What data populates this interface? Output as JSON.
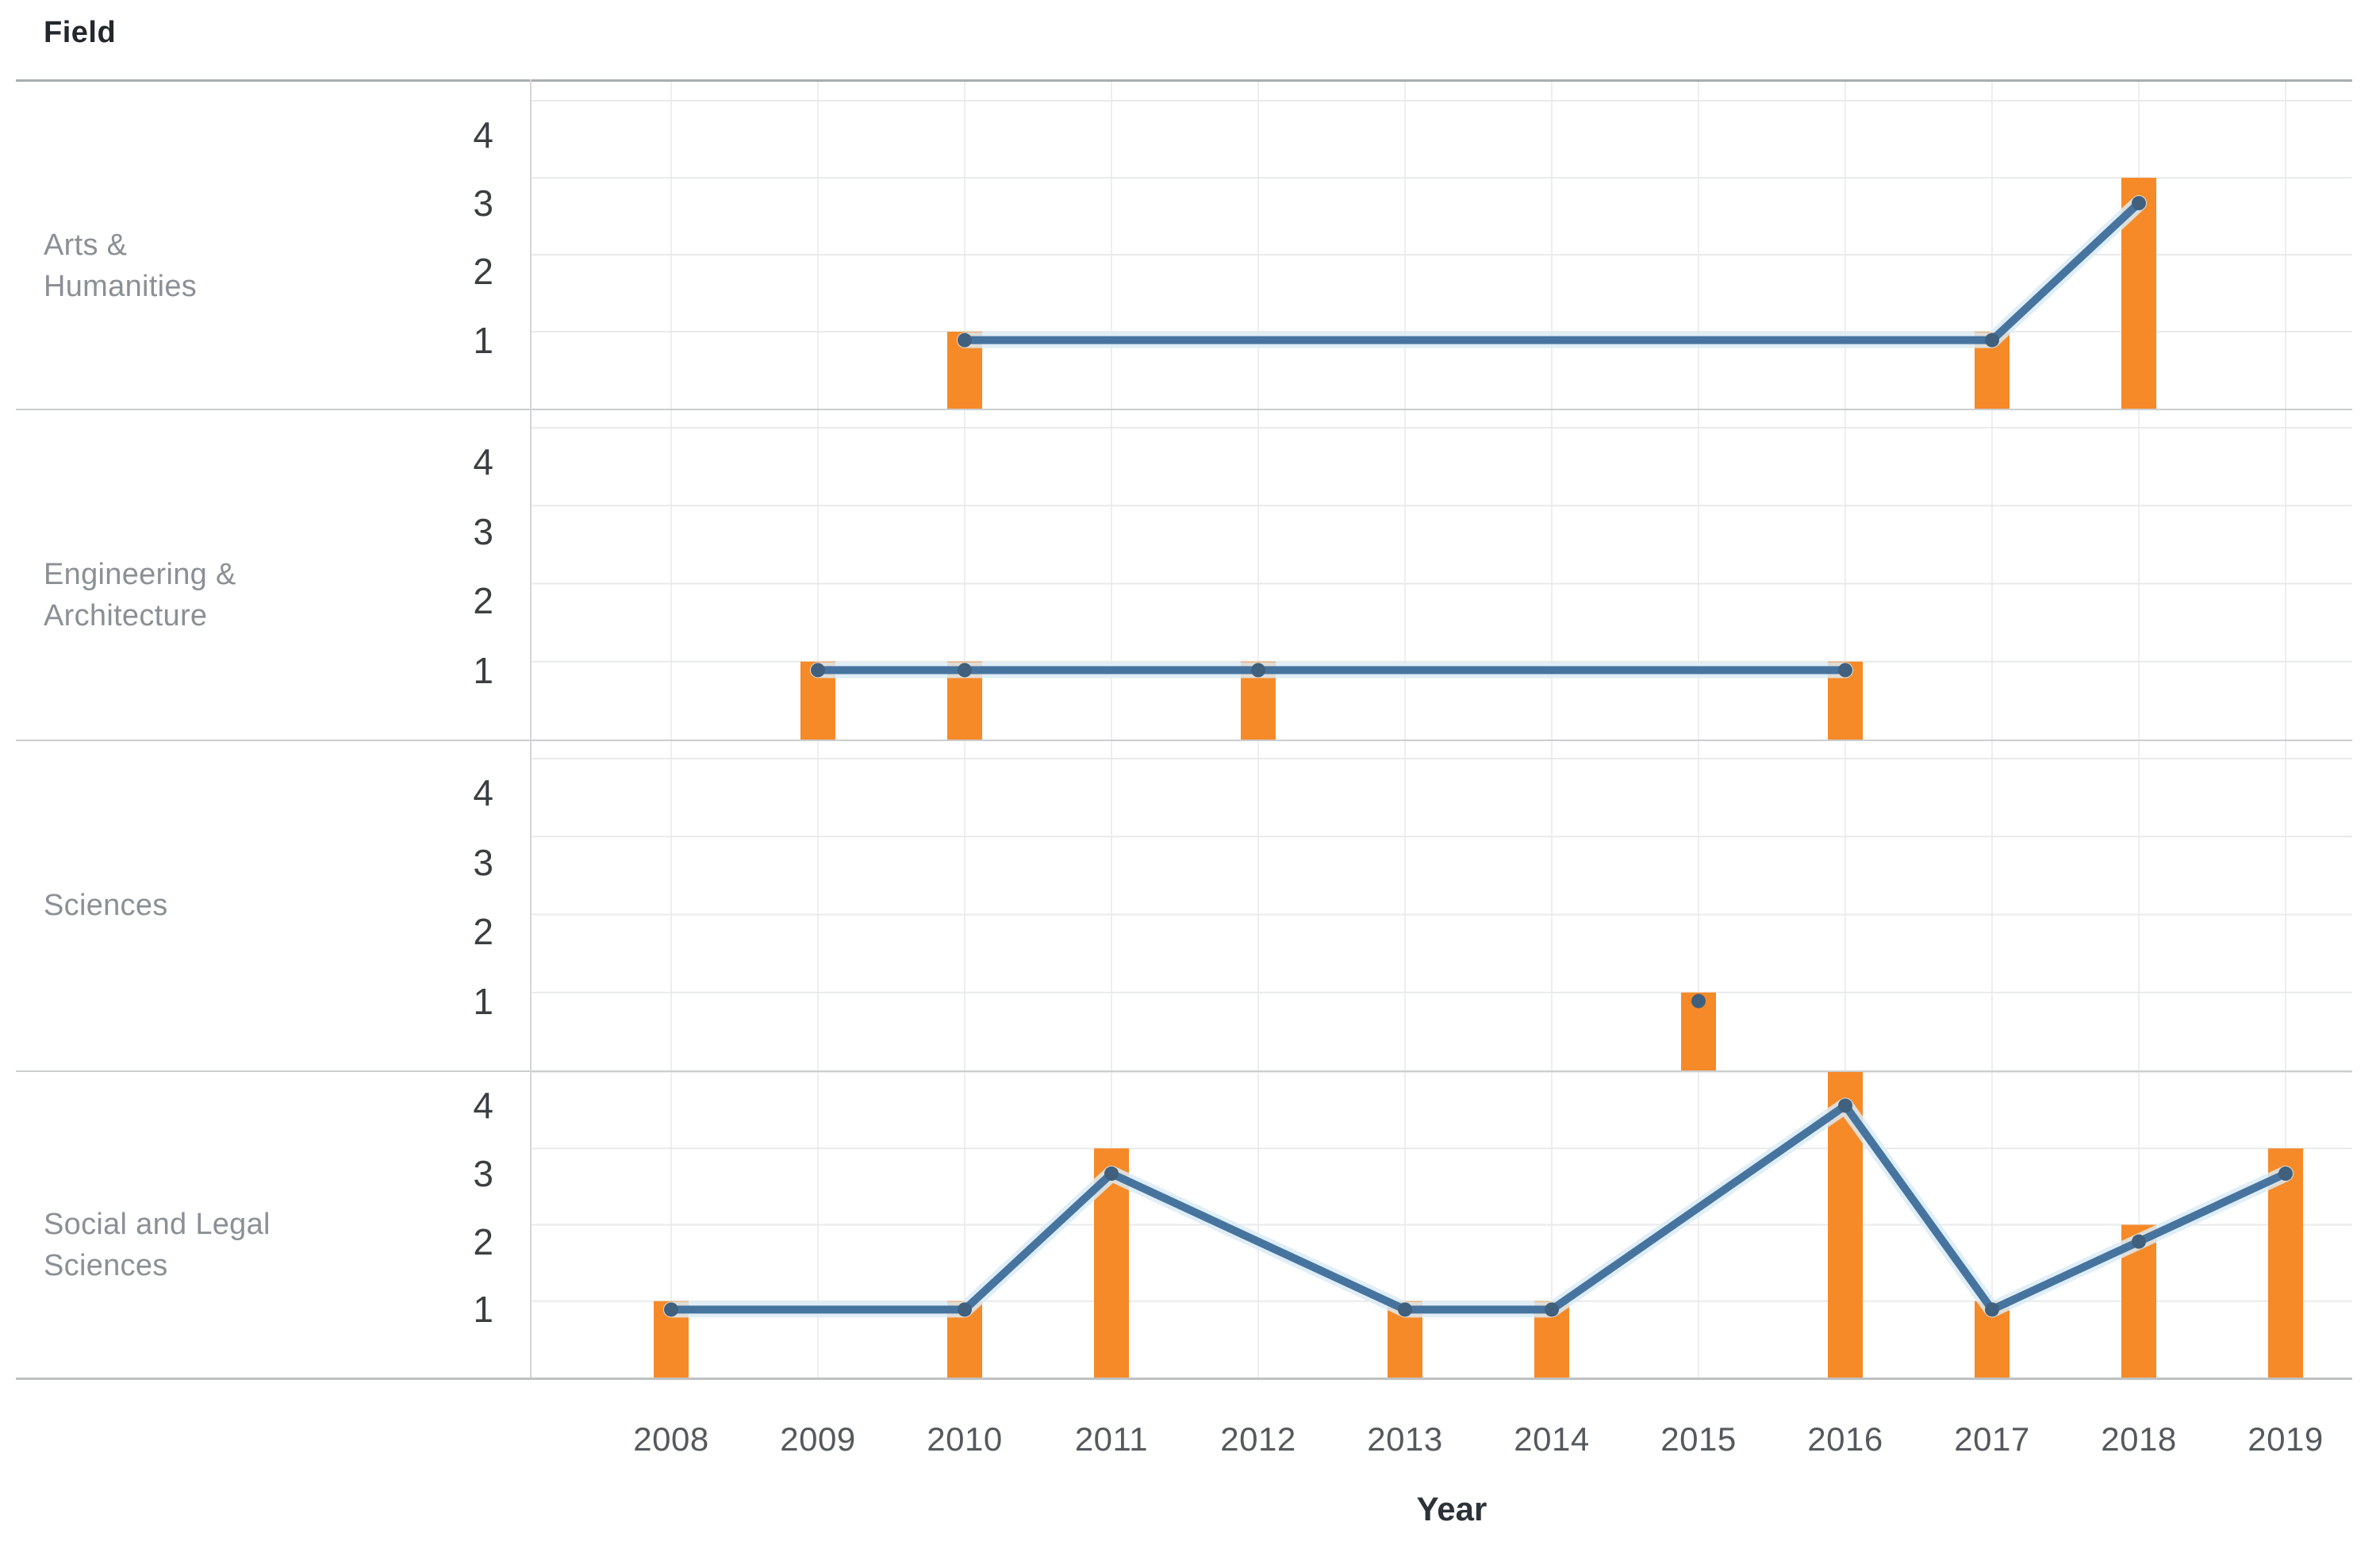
{
  "labels": {
    "field": "Field",
    "year": "Year"
  },
  "y_ticks": [
    "4",
    "3",
    "2",
    "1"
  ],
  "years": [
    "2008",
    "2009",
    "2010",
    "2011",
    "2012",
    "2013",
    "2014",
    "2015",
    "2016",
    "2017",
    "2018",
    "2019"
  ],
  "panels": [
    {
      "id": "arts-humanities",
      "title": "Arts & Humanities",
      "label_lines": [
        "Arts &",
        "Humanities"
      ]
    },
    {
      "id": "engineering-architecture",
      "title": "Engineering & Architecture",
      "label_lines": [
        "Engineering &",
        "Architecture"
      ]
    },
    {
      "id": "sciences",
      "title": "Sciences",
      "label_lines": [
        "Sciences"
      ]
    },
    {
      "id": "social-legal-sciences",
      "title": "Social and Legal Sciences",
      "label_lines": [
        "Social and Legal",
        "Sciences"
      ]
    }
  ],
  "chart_data": [
    {
      "type": "bar",
      "title": "Arts & Humanities",
      "categories": [
        2008,
        2009,
        2010,
        2011,
        2012,
        2013,
        2014,
        2015,
        2016,
        2017,
        2018,
        2019
      ],
      "values": [
        null,
        null,
        1,
        null,
        null,
        null,
        null,
        null,
        null,
        1,
        3,
        null
      ],
      "line_values": [
        null,
        null,
        1,
        null,
        null,
        null,
        null,
        null,
        null,
        1,
        3,
        null
      ],
      "xlabel": "Year",
      "ylabel": "",
      "ylim": [
        0,
        4
      ],
      "yticks": [
        1,
        2,
        3,
        4
      ],
      "grid": true,
      "legend": "none",
      "line_secondary_axis_ratio": 0.89
    },
    {
      "type": "bar",
      "title": "Engineering & Architecture",
      "categories": [
        2008,
        2009,
        2010,
        2011,
        2012,
        2013,
        2014,
        2015,
        2016,
        2017,
        2018,
        2019
      ],
      "values": [
        null,
        1,
        1,
        null,
        1,
        null,
        null,
        null,
        1,
        null,
        null,
        null
      ],
      "line_values": [
        null,
        1,
        1,
        null,
        1,
        null,
        null,
        null,
        1,
        null,
        null,
        null
      ],
      "xlabel": "Year",
      "ylabel": "",
      "ylim": [
        0,
        4
      ],
      "yticks": [
        1,
        2,
        3,
        4
      ],
      "grid": true,
      "legend": "none",
      "line_secondary_axis_ratio": 0.89
    },
    {
      "type": "bar",
      "title": "Sciences",
      "categories": [
        2008,
        2009,
        2010,
        2011,
        2012,
        2013,
        2014,
        2015,
        2016,
        2017,
        2018,
        2019
      ],
      "values": [
        null,
        null,
        null,
        null,
        null,
        null,
        null,
        1,
        null,
        null,
        null,
        null
      ],
      "line_values": [
        null,
        null,
        null,
        null,
        null,
        null,
        null,
        1,
        null,
        null,
        null,
        null
      ],
      "xlabel": "Year",
      "ylabel": "",
      "ylim": [
        0,
        4
      ],
      "yticks": [
        1,
        2,
        3,
        4
      ],
      "grid": true,
      "legend": "none",
      "line_secondary_axis_ratio": 0.89
    },
    {
      "type": "bar",
      "title": "Social and Legal Sciences",
      "categories": [
        2008,
        2009,
        2010,
        2011,
        2012,
        2013,
        2014,
        2015,
        2016,
        2017,
        2018,
        2019
      ],
      "values": [
        1,
        null,
        1,
        3,
        null,
        1,
        1,
        null,
        4,
        1,
        2,
        3
      ],
      "line_values": [
        1,
        null,
        1,
        3,
        null,
        1,
        1,
        null,
        4,
        1,
        2,
        3
      ],
      "xlabel": "Year",
      "ylabel": "",
      "ylim": [
        0,
        4
      ],
      "yticks": [
        1,
        2,
        3,
        4
      ],
      "grid": true,
      "legend": "none",
      "line_secondary_axis_ratio": 0.89
    }
  ],
  "colors": {
    "bar": "#F68A28",
    "line": "#46749F",
    "line_halo": "#DAEBF6",
    "marker": "#40607D",
    "grid_h": "#e9eaeb",
    "grid_v": "#eeeef0",
    "axis_left": "#d3d5d7",
    "row_divider": "#cbcdcf",
    "header_divider": "#a9aeb2",
    "bottom_axis": "#bec1c3",
    "field_text": "#23282d",
    "row_label_text": "#8b9095",
    "tick_text": "#3b3f42",
    "x_label_text": "#55595d",
    "year_text": "#2d3238",
    "background": "#ffffff"
  }
}
